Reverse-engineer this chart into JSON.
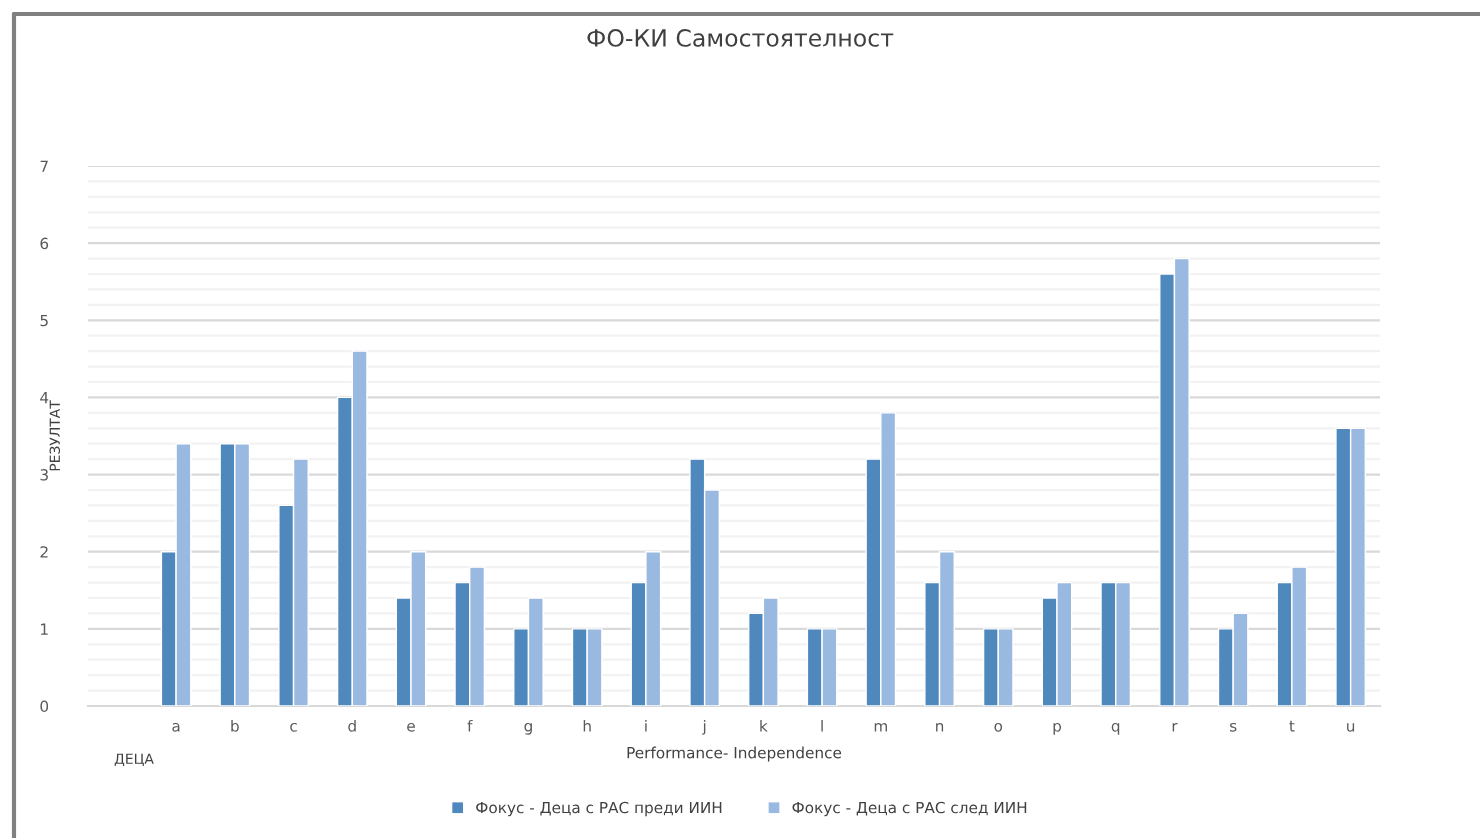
{
  "chart_data": {
    "type": "bar",
    "title": "ФО-КИ Самостоятелност",
    "xlabel": "Performance- Independence",
    "ylabel": "РЕЗУЛТАТ",
    "annotations": [
      "ДЕЦА"
    ],
    "categories": [
      null,
      "a",
      "b",
      "c",
      "d",
      "e",
      "f",
      "g",
      "h",
      "i",
      "j",
      "k",
      "l",
      "m",
      "n",
      "o",
      "p",
      "q",
      "r",
      "s",
      "t",
      "u"
    ],
    "series": [
      {
        "name": "Фокус - Деца с РАС преди ИИН",
        "color": "#4f88bd",
        "values": [
          null,
          2,
          3.4,
          2.6,
          4,
          1.4,
          1.6,
          1,
          1,
          1.6,
          3.2,
          1.2,
          1,
          3.2,
          1.6,
          1,
          1.4,
          1.6,
          5.6,
          1,
          1.6,
          3.6
        ]
      },
      {
        "name": "Фокус - Деца с РАС след ИИН",
        "color": "#9ab9e0",
        "values": [
          null,
          3.4,
          3.4,
          3.2,
          4.6,
          2,
          1.8,
          1.4,
          1,
          2,
          2.8,
          1.4,
          1,
          3.8,
          2,
          1,
          1.6,
          1.6,
          5.8,
          1.2,
          1.8,
          3.6
        ]
      }
    ],
    "ylim": [
      0,
      7
    ],
    "yticks": [
      0,
      {
        "value": 0.2,
        "label": null
      },
      {
        "value": 0.4,
        "label": null
      },
      {
        "value": 0.6,
        "label": null
      },
      {
        "value": 0.8,
        "label": null
      },
      1,
      {
        "value": 1.2,
        "label": null
      },
      {
        "value": 1.4,
        "label": null
      },
      {
        "value": 1.6,
        "label": null
      },
      {
        "value": 1.8,
        "label": null
      },
      2,
      {
        "value": 2.2,
        "label": null
      },
      {
        "value": 2.4,
        "label": null
      },
      {
        "value": 2.6,
        "label": null
      },
      {
        "value": 2.8,
        "label": null
      },
      3,
      {
        "value": 3.2,
        "label": null
      },
      {
        "value": 3.4,
        "label": null
      },
      {
        "value": 3.6,
        "label": null
      },
      {
        "value": 3.8,
        "label": null
      },
      4,
      {
        "value": 4.2,
        "label": null
      },
      {
        "value": 4.4,
        "label": null
      },
      {
        "value": 4.6,
        "label": null
      },
      {
        "value": 4.8,
        "label": null
      },
      5,
      {
        "value": 5.2,
        "label": null
      },
      {
        "value": 5.4,
        "label": null
      },
      {
        "value": 5.6,
        "label": null
      },
      {
        "value": 5.8,
        "label": null
      },
      6,
      {
        "value": 6.2,
        "label": null
      },
      {
        "value": 6.4,
        "label": null
      },
      {
        "value": 6.6,
        "label": null
      },
      {
        "value": 6.8,
        "label": null
      },
      7
    ],
    "grid": "y",
    "legend": "bottom"
  }
}
